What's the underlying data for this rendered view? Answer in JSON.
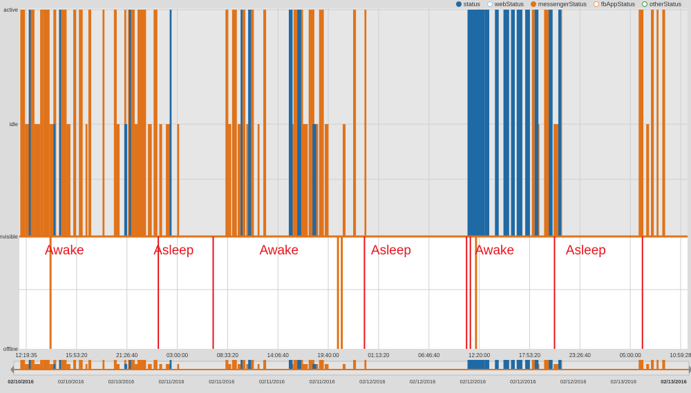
{
  "legend": [
    {
      "label": "status",
      "color": "#1f6aa5",
      "filled": true
    },
    {
      "label": "webStatus",
      "color": "#9cc5e8",
      "filled": false
    },
    {
      "label": "messengerStatus",
      "color": "#e0731a",
      "filled": true
    },
    {
      "label": "fbAppStatus",
      "color": "#f0a060",
      "filled": false
    },
    {
      "label": "otherStatus",
      "color": "#3a9a3a",
      "filled": false
    }
  ],
  "chart_data": {
    "type": "area",
    "y_levels": [
      "active",
      "idle",
      "invisible",
      "offline"
    ],
    "x_tick_labels": [
      "12:19:35",
      "15:53:20",
      "21:26:40",
      "03:00:00",
      "08:33:20",
      "14:06:40",
      "19:40:00",
      "01:13:20",
      "06:46:40",
      "12:20:00",
      "17:53:20",
      "23:26:40",
      "05:00:00",
      "10:59:28"
    ],
    "x_range_hours": [
      0,
      70.67
    ],
    "series": [
      {
        "name": "messengerStatus",
        "color": "#e0731a",
        "blocks": [
          [
            0.1,
            0.6,
            "active"
          ],
          [
            0.6,
            1.0,
            "idle"
          ],
          [
            1.0,
            1.6,
            "active"
          ],
          [
            1.6,
            2.2,
            "idle"
          ],
          [
            2.2,
            2.5,
            "active"
          ],
          [
            2.5,
            3.2,
            "active"
          ],
          [
            3.2,
            3.6,
            "idle"
          ],
          [
            3.6,
            3.9,
            "active"
          ],
          [
            4.3,
            5.0,
            "active"
          ],
          [
            5.0,
            5.4,
            "idle"
          ],
          [
            5.7,
            6.0,
            "active"
          ],
          [
            6.3,
            6.7,
            "active"
          ],
          [
            7.0,
            7.2,
            "idle"
          ],
          [
            7.3,
            7.6,
            "active"
          ],
          [
            8.8,
            9.0,
            "active"
          ],
          [
            10.0,
            10.3,
            "active"
          ],
          [
            10.3,
            10.6,
            "idle"
          ],
          [
            11.1,
            11.3,
            "active"
          ],
          [
            11.5,
            12.2,
            "active"
          ],
          [
            12.2,
            12.5,
            "idle"
          ],
          [
            12.5,
            13.4,
            "active"
          ],
          [
            13.6,
            14.0,
            "idle"
          ],
          [
            14.2,
            14.6,
            "active"
          ],
          [
            14.8,
            15.1,
            "idle"
          ],
          [
            15.5,
            16.0,
            "idle"
          ],
          [
            16.7,
            16.9,
            "idle"
          ],
          [
            21.8,
            22.1,
            "active"
          ],
          [
            22.1,
            22.4,
            "idle"
          ],
          [
            22.5,
            23.0,
            "active"
          ],
          [
            23.1,
            23.4,
            "idle"
          ],
          [
            23.5,
            23.9,
            "active"
          ],
          [
            24.0,
            24.3,
            "idle"
          ],
          [
            24.4,
            24.8,
            "active"
          ],
          [
            25.2,
            25.4,
            "idle"
          ],
          [
            25.8,
            26.1,
            "active"
          ],
          [
            28.5,
            29.0,
            "idle"
          ],
          [
            29.0,
            30.0,
            "active"
          ],
          [
            30.0,
            30.5,
            "idle"
          ],
          [
            30.6,
            31.2,
            "active"
          ],
          [
            31.3,
            31.6,
            "idle"
          ],
          [
            31.7,
            32.2,
            "active"
          ],
          [
            32.3,
            32.7,
            "idle"
          ],
          [
            34.2,
            34.5,
            "idle"
          ],
          [
            35.3,
            35.6,
            "active"
          ],
          [
            36.5,
            36.7,
            "active"
          ],
          [
            54.2,
            54.5,
            "active"
          ],
          [
            54.6,
            55.0,
            "idle"
          ],
          [
            55.5,
            56.2,
            "active"
          ],
          [
            56.5,
            57.0,
            "idle"
          ],
          [
            57.1,
            57.4,
            "active"
          ],
          [
            65.5,
            66.0,
            "active"
          ],
          [
            66.3,
            66.6,
            "idle"
          ],
          [
            66.8,
            67.1,
            "active"
          ],
          [
            67.4,
            67.6,
            "active"
          ],
          [
            68.0,
            68.3,
            "active"
          ]
        ]
      },
      {
        "name": "status",
        "color": "#1f6aa5",
        "blocks": [
          [
            1.0,
            1.2,
            "active"
          ],
          [
            3.6,
            3.8,
            "idle"
          ],
          [
            4.2,
            4.4,
            "active"
          ],
          [
            11.1,
            11.4,
            "idle"
          ],
          [
            11.6,
            11.8,
            "active"
          ],
          [
            15.9,
            16.1,
            "active"
          ],
          [
            23.4,
            23.6,
            "active"
          ],
          [
            24.2,
            24.5,
            "active"
          ],
          [
            28.5,
            28.9,
            "active"
          ],
          [
            29.4,
            29.8,
            "active"
          ],
          [
            31.0,
            31.4,
            "idle"
          ],
          [
            47.4,
            49.2,
            "active"
          ],
          [
            49.2,
            49.7,
            "active"
          ],
          [
            50.3,
            50.7,
            "active"
          ],
          [
            51.2,
            51.8,
            "active"
          ],
          [
            52.0,
            52.4,
            "active"
          ],
          [
            52.6,
            53.2,
            "active"
          ],
          [
            53.5,
            54.0,
            "active"
          ],
          [
            54.5,
            54.9,
            "active"
          ],
          [
            56.0,
            56.4,
            "active"
          ],
          [
            57.0,
            57.3,
            "active"
          ]
        ]
      }
    ],
    "annotations": [
      {
        "label": "Awake",
        "x_hours": 4.3
      },
      {
        "label": "Asleep",
        "x_hours": 15.8
      },
      {
        "label": "Awake",
        "x_hours": 27.0
      },
      {
        "label": "Asleep",
        "x_hours": 38.8
      },
      {
        "label": "Awake",
        "x_hours": 49.8
      },
      {
        "label": "Asleep",
        "x_hours": 59.4
      }
    ],
    "markers": [
      {
        "x_hours": 3.3,
        "kind": "orange",
        "top": "invisible"
      },
      {
        "x_hours": 14.7,
        "kind": "red",
        "top": "invisible"
      },
      {
        "x_hours": 20.5,
        "kind": "red",
        "top": "invisible"
      },
      {
        "x_hours": 33.7,
        "kind": "orange",
        "top": "invisible"
      },
      {
        "x_hours": 34.1,
        "kind": "orange",
        "top": "invisible"
      },
      {
        "x_hours": 36.5,
        "kind": "red",
        "top": "invisible"
      },
      {
        "x_hours": 47.3,
        "kind": "red",
        "top": "invisible"
      },
      {
        "x_hours": 47.7,
        "kind": "red",
        "top": "invisible"
      },
      {
        "x_hours": 48.3,
        "kind": "orange",
        "top": "invisible"
      },
      {
        "x_hours": 56.6,
        "kind": "red",
        "top": "invisible"
      },
      {
        "x_hours": 65.9,
        "kind": "red",
        "top": "invisible"
      }
    ],
    "navigator": {
      "date_labels": [
        "02/10/2016",
        "02/10/2016",
        "02/10/2016",
        "02/11/2016",
        "02/11/2016",
        "02/11/2016",
        "02/11/2016",
        "02/12/2016",
        "02/12/2016",
        "02/12/2016",
        "02/12/2016",
        "02/12/2016",
        "02/13/2016",
        "02/13/2016"
      ],
      "bold_labels": [
        0,
        13
      ]
    }
  }
}
